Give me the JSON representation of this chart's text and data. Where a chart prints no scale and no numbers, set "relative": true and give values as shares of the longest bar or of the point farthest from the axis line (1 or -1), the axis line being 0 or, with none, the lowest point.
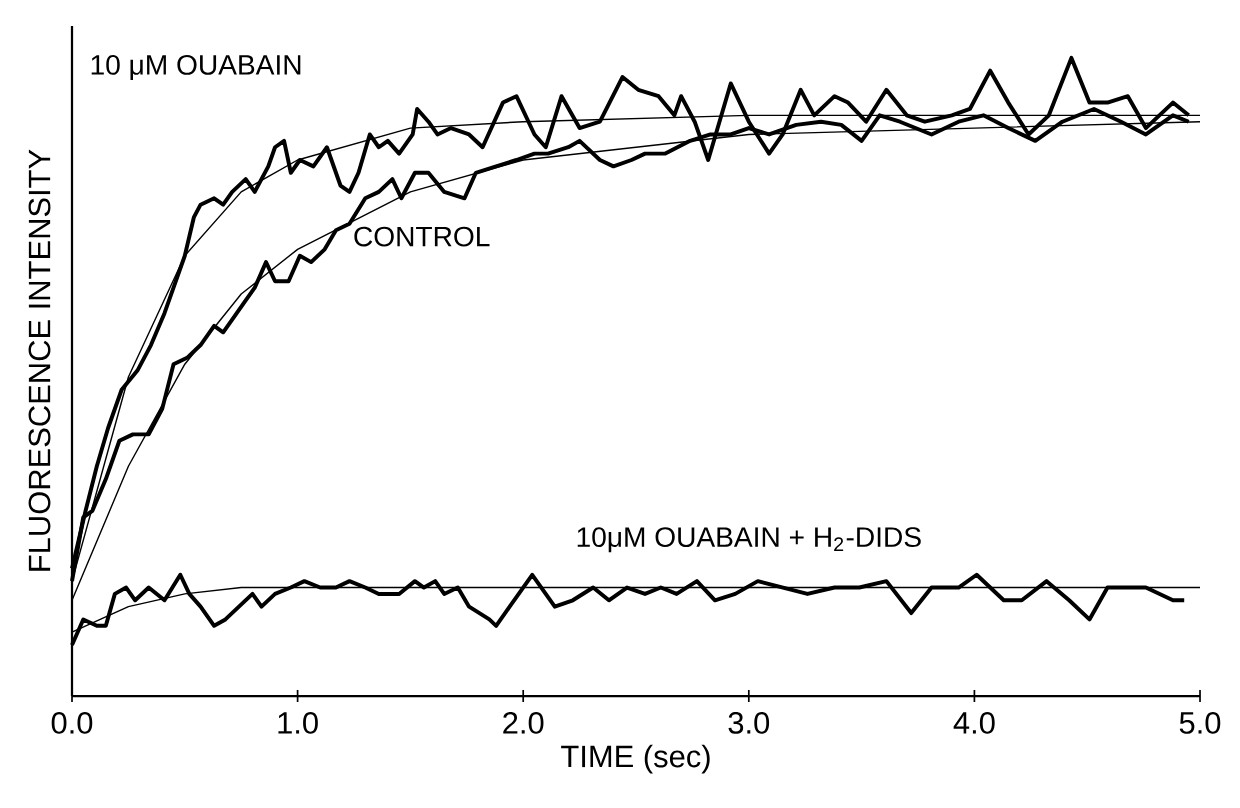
{
  "chart_data": {
    "type": "line",
    "xlabel": "TIME (sec)",
    "ylabel": "FLUORESCENCE INTENSITY",
    "relative": true,
    "tick_labels": "x",
    "xlim": [
      0,
      5
    ],
    "xticks": [
      {
        "value": 0,
        "label": "0.0"
      },
      {
        "value": 1,
        "label": "1.0"
      },
      {
        "value": 2,
        "label": "2.0"
      },
      {
        "value": 3,
        "label": "3.0"
      },
      {
        "value": 4,
        "label": "4.0"
      },
      {
        "value": 5,
        "label": "5.0"
      }
    ],
    "series": [
      {
        "name": "10 μM OUABAIN",
        "color": "#000000",
        "x": [
          0.0,
          0.06,
          0.11,
          0.16,
          0.22,
          0.29,
          0.35,
          0.41,
          0.45,
          0.5,
          0.54,
          0.57,
          0.63,
          0.67,
          0.71,
          0.77,
          0.81,
          0.87,
          0.9,
          0.94,
          0.97,
          1.01,
          1.07,
          1.13,
          1.19,
          1.23,
          1.27,
          1.32,
          1.36,
          1.4,
          1.45,
          1.51,
          1.53,
          1.58,
          1.62,
          1.68,
          1.76,
          1.82,
          1.91,
          1.97,
          2.05,
          2.1,
          2.17,
          2.25,
          2.34,
          2.44,
          2.51,
          2.6,
          2.67,
          2.7,
          2.76,
          2.82,
          2.92,
          3.0,
          3.09,
          3.15,
          3.23,
          3.29,
          3.38,
          3.44,
          3.52,
          3.61,
          3.7,
          3.78,
          3.9,
          3.98,
          4.07,
          4.15,
          4.24,
          4.33,
          4.43,
          4.51,
          4.59,
          4.68,
          4.76,
          4.88,
          4.95
        ],
        "values": [
          0.2,
          0.29,
          0.36,
          0.42,
          0.48,
          0.51,
          0.55,
          0.6,
          0.64,
          0.69,
          0.75,
          0.77,
          0.78,
          0.77,
          0.79,
          0.81,
          0.79,
          0.83,
          0.86,
          0.87,
          0.82,
          0.84,
          0.83,
          0.86,
          0.8,
          0.79,
          0.82,
          0.88,
          0.86,
          0.87,
          0.85,
          0.88,
          0.92,
          0.9,
          0.88,
          0.89,
          0.88,
          0.86,
          0.93,
          0.94,
          0.88,
          0.86,
          0.94,
          0.89,
          0.9,
          0.97,
          0.95,
          0.94,
          0.91,
          0.94,
          0.9,
          0.84,
          0.96,
          0.9,
          0.85,
          0.88,
          0.95,
          0.91,
          0.94,
          0.93,
          0.9,
          0.95,
          0.91,
          0.9,
          0.91,
          0.92,
          0.98,
          0.93,
          0.88,
          0.91,
          1.0,
          0.93,
          0.93,
          0.94,
          0.89,
          0.93,
          0.91
        ]
      },
      {
        "name": "CONTROL",
        "color": "#000000",
        "x": [
          0.0,
          0.05,
          0.09,
          0.15,
          0.21,
          0.27,
          0.34,
          0.4,
          0.45,
          0.51,
          0.57,
          0.63,
          0.67,
          0.71,
          0.77,
          0.81,
          0.86,
          0.9,
          0.96,
          1.01,
          1.06,
          1.12,
          1.17,
          1.23,
          1.3,
          1.36,
          1.42,
          1.46,
          1.52,
          1.58,
          1.65,
          1.74,
          1.79,
          1.88,
          1.97,
          2.05,
          2.11,
          2.2,
          2.25,
          2.34,
          2.4,
          2.48,
          2.54,
          2.63,
          2.74,
          2.83,
          2.92,
          3.0,
          3.09,
          3.21,
          3.32,
          3.41,
          3.5,
          3.58,
          3.67,
          3.81,
          3.93,
          4.04,
          4.15,
          4.27,
          4.39,
          4.53,
          4.65,
          4.76,
          4.88,
          4.95
        ],
        "values": [
          0.18,
          0.28,
          0.29,
          0.34,
          0.4,
          0.41,
          0.41,
          0.45,
          0.52,
          0.53,
          0.55,
          0.58,
          0.57,
          0.59,
          0.62,
          0.64,
          0.68,
          0.65,
          0.65,
          0.69,
          0.68,
          0.7,
          0.73,
          0.74,
          0.78,
          0.79,
          0.81,
          0.78,
          0.82,
          0.82,
          0.79,
          0.78,
          0.82,
          0.83,
          0.84,
          0.85,
          0.85,
          0.86,
          0.87,
          0.84,
          0.83,
          0.84,
          0.85,
          0.85,
          0.87,
          0.88,
          0.88,
          0.89,
          0.88,
          0.895,
          0.9,
          0.895,
          0.87,
          0.91,
          0.9,
          0.88,
          0.9,
          0.91,
          0.89,
          0.87,
          0.9,
          0.92,
          0.9,
          0.88,
          0.91,
          0.9
        ]
      },
      {
        "name": "10μM OUABAIN + H$_{2}$-DIDS",
        "color": "#000000",
        "x": [
          0.0,
          0.05,
          0.11,
          0.15,
          0.19,
          0.24,
          0.28,
          0.34,
          0.41,
          0.48,
          0.52,
          0.57,
          0.63,
          0.68,
          0.74,
          0.8,
          0.84,
          0.9,
          0.97,
          1.03,
          1.1,
          1.17,
          1.23,
          1.3,
          1.36,
          1.45,
          1.52,
          1.56,
          1.61,
          1.65,
          1.71,
          1.76,
          1.85,
          1.88,
          1.94,
          2.04,
          2.14,
          2.22,
          2.31,
          2.38,
          2.46,
          2.54,
          2.61,
          2.68,
          2.77,
          2.85,
          2.94,
          3.04,
          3.15,
          3.26,
          3.38,
          3.49,
          3.61,
          3.72,
          3.81,
          3.93,
          4.01,
          4.13,
          4.21,
          4.32,
          4.42,
          4.51,
          4.59,
          4.68,
          4.76,
          4.88,
          4.93
        ],
        "values": [
          0.08,
          0.12,
          0.11,
          0.11,
          0.16,
          0.17,
          0.15,
          0.17,
          0.15,
          0.19,
          0.16,
          0.14,
          0.11,
          0.12,
          0.14,
          0.16,
          0.14,
          0.16,
          0.17,
          0.18,
          0.17,
          0.17,
          0.18,
          0.17,
          0.16,
          0.16,
          0.18,
          0.17,
          0.18,
          0.16,
          0.17,
          0.14,
          0.12,
          0.11,
          0.14,
          0.19,
          0.14,
          0.15,
          0.17,
          0.15,
          0.17,
          0.16,
          0.17,
          0.16,
          0.18,
          0.15,
          0.16,
          0.18,
          0.17,
          0.16,
          0.17,
          0.17,
          0.18,
          0.13,
          0.17,
          0.17,
          0.19,
          0.15,
          0.15,
          0.18,
          0.15,
          0.12,
          0.17,
          0.17,
          0.17,
          0.15,
          0.15
        ]
      },
      {
        "color": "#000000",
        "x": [
          0,
          0.25,
          0.5,
          0.75,
          1,
          1.5,
          2,
          3,
          4,
          5
        ],
        "values": [
          0.18,
          0.5,
          0.69,
          0.79,
          0.84,
          0.89,
          0.9,
          0.91,
          0.91,
          0.91
        ]
      },
      {
        "color": "#000000",
        "x": [
          0,
          0.25,
          0.5,
          0.75,
          1,
          1.5,
          2,
          3,
          4,
          5
        ],
        "values": [
          0.15,
          0.36,
          0.52,
          0.63,
          0.7,
          0.79,
          0.84,
          0.88,
          0.89,
          0.9
        ]
      },
      {
        "color": "#000000",
        "x": [
          0,
          0.25,
          0.5,
          0.75,
          1,
          1.5,
          2,
          3,
          4,
          5
        ],
        "values": [
          0.1,
          0.14,
          0.16,
          0.17,
          0.17,
          0.17,
          0.17,
          0.17,
          0.17,
          0.17
        ]
      }
    ]
  }
}
